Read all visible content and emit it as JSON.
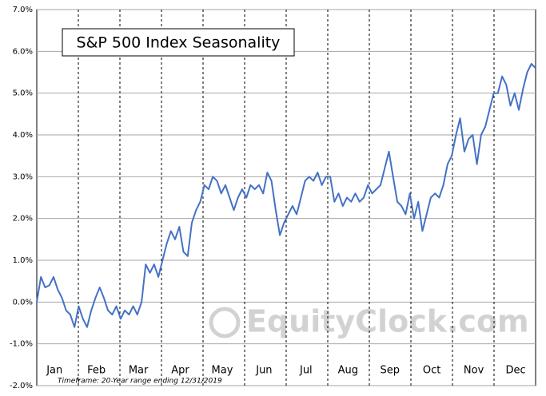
{
  "chart_data": {
    "type": "line",
    "title": "S&P 500 Index Seasonality",
    "annotation": "Timeframe: 20-Year range ending 12/31/2019",
    "watermark": "EquityClock.com",
    "color": "#4472c4",
    "grid": true,
    "ylim": [
      -2,
      7
    ],
    "yticks": [
      {
        "value": -2,
        "label": "-2.0%"
      },
      {
        "value": -1,
        "label": "-1.0%"
      },
      {
        "value": 0,
        "label": "0.0%"
      },
      {
        "value": 1,
        "label": "1.0%"
      },
      {
        "value": 2,
        "label": "2.0%"
      },
      {
        "value": 3,
        "label": "3.0%"
      },
      {
        "value": 4,
        "label": "4.0%"
      },
      {
        "value": 5,
        "label": "5.0%"
      },
      {
        "value": 6,
        "label": "6.0%"
      },
      {
        "value": 7,
        "label": "7.0%"
      }
    ],
    "categories": [
      null,
      null,
      null,
      null,
      null,
      "Jan",
      null,
      null,
      null,
      null,
      null,
      null,
      null,
      null,
      null,
      "Feb",
      null,
      null,
      null,
      null,
      null,
      null,
      null,
      null,
      null,
      "Mar",
      null,
      null,
      null,
      null,
      null,
      null,
      null,
      null,
      null,
      "Apr",
      null,
      null,
      null,
      null,
      null,
      null,
      null,
      null,
      null,
      "May",
      null,
      null,
      null,
      null,
      null,
      null,
      null,
      null,
      null,
      "Jun",
      null,
      null,
      null,
      null,
      null,
      null,
      null,
      null,
      null,
      "Jul",
      null,
      null,
      null,
      null,
      null,
      null,
      null,
      null,
      null,
      "Aug",
      null,
      null,
      null,
      null,
      null,
      null,
      null,
      null,
      null,
      "Sep",
      null,
      null,
      null,
      null,
      null,
      null,
      null,
      null,
      null,
      "Oct",
      null,
      null,
      null,
      null,
      null,
      null,
      null,
      null,
      null,
      "Nov",
      null,
      null,
      null,
      null,
      null,
      null,
      null,
      null,
      null,
      "Dec",
      null,
      null,
      null,
      null
    ],
    "values": [
      0.0,
      0.6,
      0.35,
      0.4,
      0.6,
      0.3,
      0.1,
      -0.2,
      -0.3,
      -0.6,
      -0.1,
      -0.4,
      -0.6,
      -0.2,
      0.1,
      0.35,
      0.1,
      -0.2,
      -0.3,
      -0.1,
      -0.4,
      -0.2,
      -0.3,
      -0.1,
      -0.3,
      0.0,
      0.9,
      0.7,
      0.9,
      0.6,
      1.0,
      1.4,
      1.7,
      1.5,
      1.8,
      1.2,
      1.1,
      1.9,
      2.2,
      2.4,
      2.8,
      2.7,
      3.0,
      2.9,
      2.6,
      2.8,
      2.5,
      2.2,
      2.5,
      2.7,
      2.5,
      2.8,
      2.7,
      2.8,
      2.6,
      3.1,
      2.9,
      2.2,
      1.6,
      1.9,
      2.1,
      2.3,
      2.1,
      2.5,
      2.9,
      3.0,
      2.9,
      3.1,
      2.8,
      3.0,
      3.0,
      2.4,
      2.6,
      2.3,
      2.5,
      2.4,
      2.6,
      2.4,
      2.5,
      2.8,
      2.6,
      2.7,
      2.8,
      3.2,
      3.6,
      3.0,
      2.4,
      2.3,
      2.1,
      2.6,
      2.0,
      2.4,
      1.7,
      2.1,
      2.5,
      2.6,
      2.5,
      2.8,
      3.3,
      3.5,
      4.0,
      4.4,
      3.6,
      3.9,
      4.0,
      3.3,
      4.0,
      4.2,
      4.6,
      5.0,
      5.0,
      5.4,
      5.2,
      4.7,
      5.0,
      4.6,
      5.1,
      5.5,
      5.7,
      5.6
    ]
  }
}
